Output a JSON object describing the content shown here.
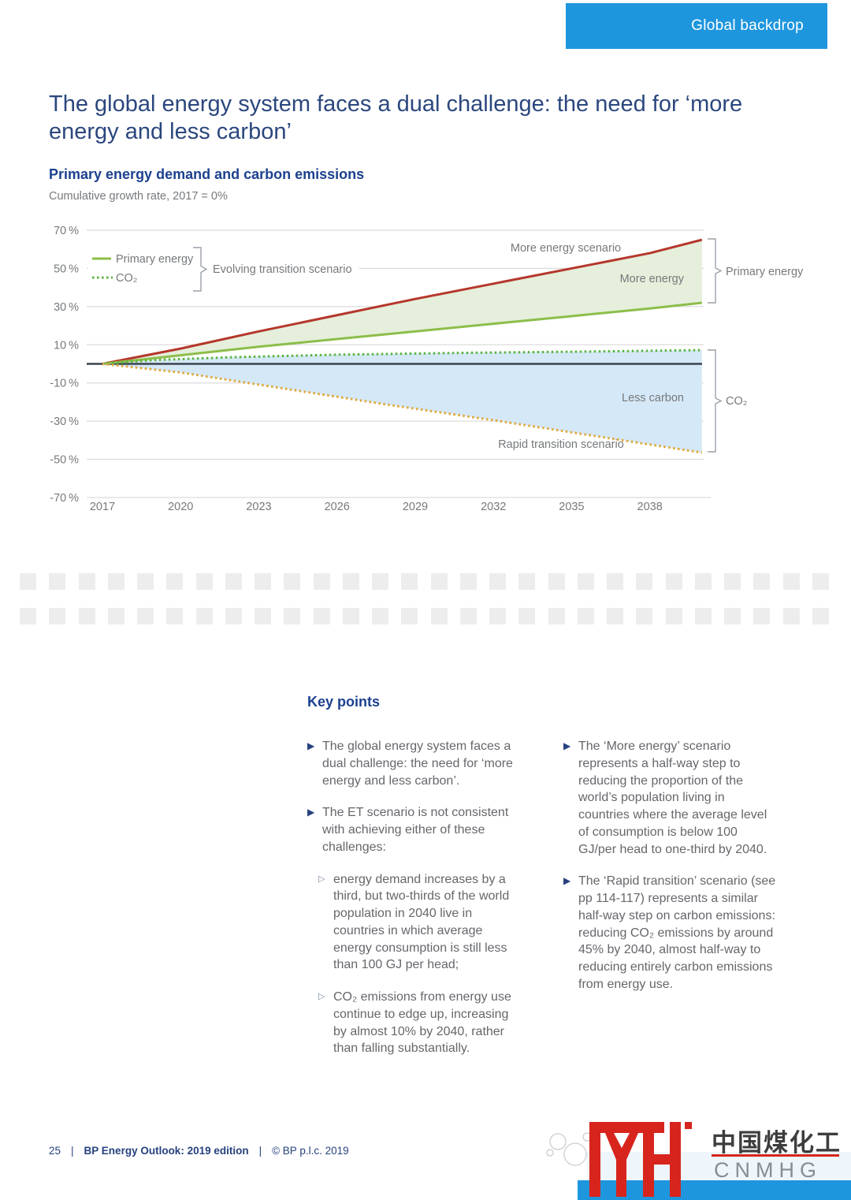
{
  "header": {
    "tab_label": "Global backdrop"
  },
  "title": "The global energy system faces a dual challenge: the need for ‘more energy and less carbon’",
  "chart_labels": {
    "legend_primary": "Primary energy",
    "legend_co2": "CO₂",
    "legend_group": "Evolving transition scenario",
    "more_energy_scenario": "More energy scenario",
    "more_energy": "More energy",
    "less_carbon": "Less carbon",
    "rapid_transition": "Rapid transition scenario",
    "bracket_primary": "Primary energy",
    "bracket_co2": "CO₂"
  },
  "chart_data": {
    "type": "area",
    "title": "Primary energy demand and carbon emissions",
    "subtitle": "Cumulative growth rate, 2017 = 0%",
    "x_ticks": [
      2017,
      2020,
      2023,
      2026,
      2029,
      2032,
      2035,
      2038
    ],
    "y_ticks": [
      70,
      50,
      30,
      10,
      -10,
      -30,
      -50,
      -70
    ],
    "ylim": [
      -70,
      70
    ],
    "y_unit": "%",
    "zero_line": true,
    "grid": true,
    "series": [
      {
        "name": "More energy scenario – primary energy",
        "color": "#b5372c",
        "dash": "solid",
        "points": [
          [
            2017,
            0
          ],
          [
            2020,
            8
          ],
          [
            2023,
            17
          ],
          [
            2026,
            25.5
          ],
          [
            2029,
            34
          ],
          [
            2032,
            42
          ],
          [
            2035,
            50
          ],
          [
            2038,
            58
          ],
          [
            2040,
            65
          ]
        ]
      },
      {
        "name": "Primary energy – Evolving transition scenario",
        "color": "#8cbe4a",
        "dash": "solid",
        "points": [
          [
            2017,
            0
          ],
          [
            2020,
            4.5
          ],
          [
            2023,
            9
          ],
          [
            2026,
            13
          ],
          [
            2029,
            17
          ],
          [
            2032,
            21
          ],
          [
            2035,
            25
          ],
          [
            2038,
            29
          ],
          [
            2040,
            32
          ]
        ]
      },
      {
        "name": "CO₂ – Evolving transition scenario",
        "color": "#5bb544",
        "dash": "dotted",
        "points": [
          [
            2017,
            0
          ],
          [
            2019,
            2
          ],
          [
            2022,
            3.5
          ],
          [
            2026,
            4.8
          ],
          [
            2031,
            5.8
          ],
          [
            2036,
            6.5
          ],
          [
            2040,
            7.2
          ]
        ]
      },
      {
        "name": "CO₂ – Rapid transition scenario",
        "color": "#dfa93e",
        "dash": "dotted",
        "points": [
          [
            2017,
            0
          ],
          [
            2020,
            -4.5
          ],
          [
            2024,
            -13
          ],
          [
            2028,
            -21.5
          ],
          [
            2032,
            -29.5
          ],
          [
            2036,
            -38
          ],
          [
            2040,
            -46.5
          ]
        ]
      }
    ],
    "areas": [
      {
        "between": [
          0,
          1
        ],
        "color": "#e5efdb",
        "label": "More energy"
      },
      {
        "between": [
          2,
          3
        ],
        "color": "#d5e8f7",
        "label": "Less carbon"
      }
    ]
  },
  "key_points": {
    "heading": "Key points",
    "col1": [
      {
        "level": 1,
        "text": "The global energy system faces a dual challenge: the need for ‘more energy and less carbon’."
      },
      {
        "level": 1,
        "text": "The ET scenario is not consistent with achieving either of these challenges:"
      },
      {
        "level": 2,
        "text": "energy demand increases by a third, but two-thirds of the world population in 2040 live in countries in which average energy consumption is still less than 100 GJ per head;"
      },
      {
        "level": 2,
        "text": "CO₂ emissions from energy use continue to edge up, increasing by almost 10% by 2040, rather than falling substantially."
      }
    ],
    "col2": [
      {
        "level": 1,
        "text": "The ‘More energy’ scenario represents a half-way step to reducing the proportion of the world’s population living in countries where the average level of consumption is below 100 GJ/per head to one-third by 2040."
      },
      {
        "level": 1,
        "text": "The ‘Rapid transition’ scenario (see pp 114-117) represents a similar half-way step on carbon emissions: reducing CO₂ emissions by around 45% by 2040, almost half-way to reducing entirely carbon emissions from energy use."
      }
    ]
  },
  "footer": {
    "page_number": "25",
    "separator": "|",
    "report_title": "BP Energy Outlook: 2019 edition",
    "copyright": "© BP p.l.c. 2019"
  },
  "logo": {
    "cn_name": "中国煤化工",
    "latin_name": "CNMHG",
    "brand_red": "#d7251d",
    "brand_blue": "#1e96de"
  }
}
